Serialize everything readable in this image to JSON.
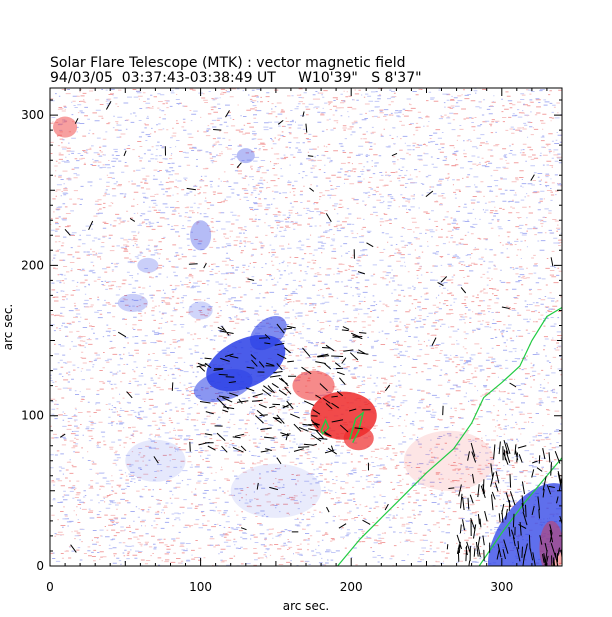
{
  "figure": {
    "title": "Solar Flare Telescope (MTK) : vector magnetic field",
    "subtitle": "94/03/05  03:37:43-03:38:49 UT     W10'39\"   S 8'37\"",
    "xlabel": "arc sec.",
    "ylabel": "arc sec.",
    "xlim": [
      0,
      340
    ],
    "ylim": [
      0,
      318
    ],
    "xticks": [
      {
        "value": 0,
        "label": "0"
      },
      {
        "value": 100,
        "label": "100"
      },
      {
        "value": 200,
        "label": "200"
      },
      {
        "value": 300,
        "label": "300"
      }
    ],
    "yticks": [
      {
        "value": 0,
        "label": "0"
      },
      {
        "value": 100,
        "label": "100"
      },
      {
        "value": 200,
        "label": "200"
      },
      {
        "value": 300,
        "label": "300"
      }
    ]
  },
  "colors": {
    "positive_polarity": "#ee2a2a",
    "negative_polarity": "#2a3fe6",
    "contour": "#22cc44",
    "vectors": "#000000",
    "background": "#ffffff"
  }
}
